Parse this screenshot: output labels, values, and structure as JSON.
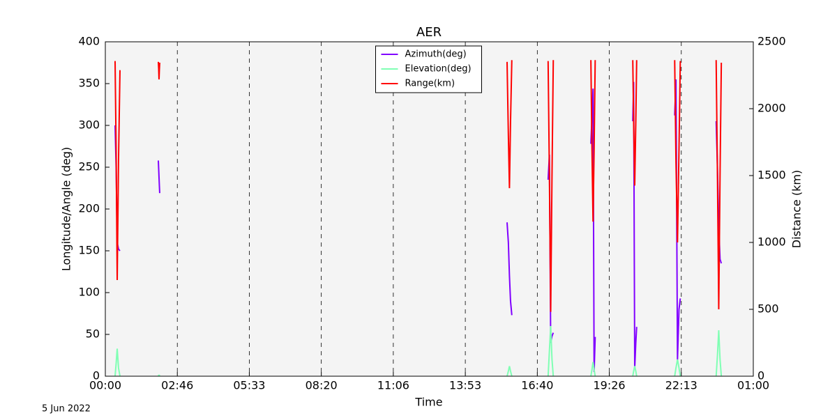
{
  "chart_data": {
    "type": "line",
    "title": "AER",
    "xlabel": "Time",
    "ylabel": "Longitude/Angle (deg)",
    "y2label": "Distance (km)",
    "annotation": "5 Jun 2022",
    "x": [
      22.6,
      25,
      27.5,
      30.5,
      33.9,
      80,
      122.7,
      123.5,
      124.3,
      125.1,
      125.9,
      500,
      930,
      933,
      935.5,
      938,
      941,
      983,
      1025,
      1028,
      1031,
      1034,
      1037,
      1080,
      1124,
      1126.5,
      1129,
      1131.5,
      1134,
      1177,
      1221,
      1223,
      1225.5,
      1228,
      1230,
      1274,
      1318,
      1321,
      1324.5,
      1328,
      1331,
      1372,
      1414,
      1417,
      1420,
      1423,
      1426
    ],
    "series": [
      {
        "name": "Azimuth(deg)",
        "color": "#8000ff",
        "axis": "y",
        "values": [
          300,
          250,
          160,
          152,
          150,
          null,
          258,
          248,
          238,
          228,
          219,
          null,
          184,
          160,
          120,
          90,
          73,
          null,
          235,
          265,
          40,
          48,
          52,
          null,
          278,
          310,
          344,
          5,
          47,
          null,
          305,
          352,
          10,
          40,
          59,
          null,
          312,
          355,
          20,
          80,
          93,
          null,
          305,
          250,
          180,
          140,
          135
        ]
      },
      {
        "name": "Elevation(deg)",
        "color": "#80ffb4",
        "axis": "y",
        "values": [
          0,
          15,
          33,
          10,
          0,
          null,
          0,
          1,
          1,
          1,
          0,
          null,
          0,
          6,
          12,
          6,
          0,
          null,
          0,
          30,
          60,
          20,
          0,
          null,
          0,
          8,
          17,
          8,
          0,
          null,
          0,
          6,
          12,
          6,
          0,
          null,
          0,
          10,
          20,
          10,
          0,
          null,
          0,
          25,
          55,
          20,
          0
        ]
      },
      {
        "name": "Range(km)",
        "color": "#ff0000",
        "axis": "y2",
        "values": [
          2356,
          1700,
          719,
          1600,
          2288,
          null,
          2350,
          2300,
          2219,
          2290,
          2344,
          null,
          2350,
          1800,
          1406,
          1900,
          2363,
          null,
          2356,
          1500,
          481,
          1500,
          2363,
          null,
          2363,
          1700,
          1156,
          1700,
          2363,
          null,
          2363,
          1900,
          1425,
          1900,
          2363,
          null,
          2363,
          1600,
          1000,
          1700,
          2356,
          null,
          2363,
          1500,
          500,
          1500,
          2344
        ]
      }
    ],
    "xlim": [
      0,
      1500
    ],
    "xticks": [
      {
        "value": 0,
        "label": "00:00"
      },
      {
        "value": 166.667,
        "label": "02:46"
      },
      {
        "value": 333.333,
        "label": "05:33"
      },
      {
        "value": 500,
        "label": "08:20"
      },
      {
        "value": 666.667,
        "label": "11:06"
      },
      {
        "value": 833.333,
        "label": "13:53"
      },
      {
        "value": 1000,
        "label": "16:40"
      },
      {
        "value": 1166.667,
        "label": "19:26"
      },
      {
        "value": 1333.333,
        "label": "22:13"
      },
      {
        "value": 1500,
        "label": "01:00"
      }
    ],
    "ylim": [
      0,
      400
    ],
    "yticks": [
      0,
      50,
      100,
      150,
      200,
      250,
      300,
      350,
      400
    ],
    "y2lim": [
      0,
      2500
    ],
    "y2ticks": [
      0,
      500,
      1000,
      1500,
      2000,
      2500
    ],
    "grid": "x",
    "legend": "upper center"
  }
}
